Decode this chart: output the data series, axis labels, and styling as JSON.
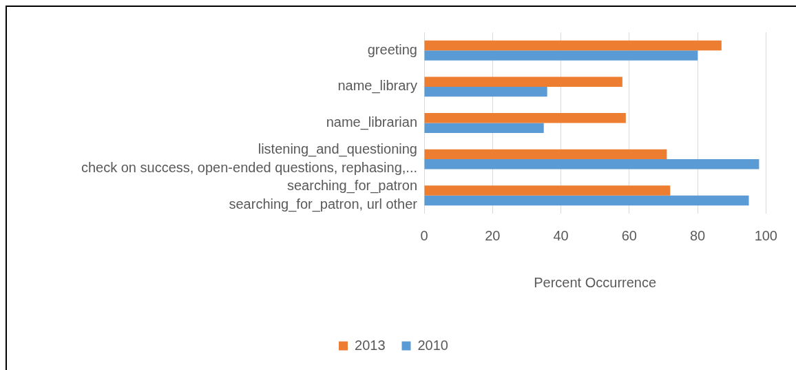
{
  "chart_data": {
    "type": "bar",
    "orientation": "horizontal",
    "categories": [
      "greeting",
      "name_library",
      "name_librarian",
      "listening_and_questioning\ncheck on success, open-ended questions, rephasing,...",
      "searching_for_patron\nsearching_for_patron, url other"
    ],
    "series": [
      {
        "name": "2013",
        "color": "#ed7d31",
        "values": [
          87,
          58,
          59,
          71,
          72
        ]
      },
      {
        "name": "2010",
        "color": "#5b9bd5",
        "values": [
          80,
          36,
          35,
          98,
          95
        ]
      }
    ],
    "xlabel": "Percent Occurrence",
    "xlim": [
      0,
      100
    ],
    "xticks": [
      0,
      20,
      40,
      60,
      80,
      100
    ],
    "grid": "x",
    "legend": "bottom"
  }
}
